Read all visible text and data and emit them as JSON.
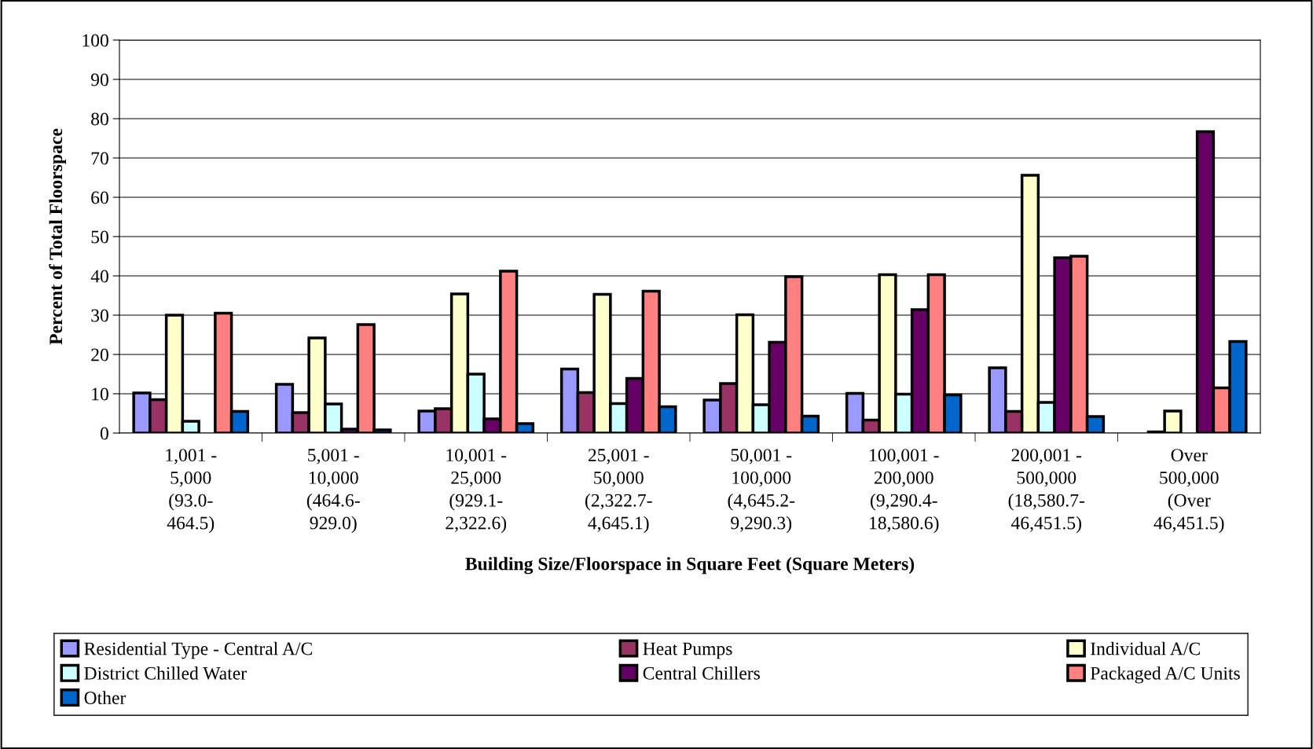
{
  "chart_data": {
    "type": "bar",
    "xlabel": "Building Size/Floorspace in Square Feet (Square Meters)",
    "ylabel": "Percent of Total Floorspace",
    "categories": [
      "1,001 -\n5,000\n(93.0-\n464.5)",
      "5,001 -\n10,000\n(464.6-\n929.0)",
      "10,001 -\n25,000\n(929.1-\n2,322.6)",
      "25,001 -\n50,000\n(2,322.7-\n4,645.1)",
      "50,001 -\n100,000\n(4,645.2-\n9,290.3)",
      "100,001 -\n200,000\n(9,290.4-\n18,580.6)",
      "200,001 -\n500,000\n(18,580.7-\n46,451.5)",
      "Over\n500,000\n(Over\n46,451.5)"
    ],
    "series": [
      {
        "name": "Residential Type - Central A/C",
        "color": "#9999ff",
        "values": [
          10.2,
          12.4,
          5.6,
          16.3,
          8.4,
          10.1,
          16.6,
          null
        ]
      },
      {
        "name": "Heat Pumps",
        "color": "#993366",
        "values": [
          8.5,
          5.2,
          6.2,
          10.3,
          12.6,
          3.3,
          5.5,
          0.3
        ]
      },
      {
        "name": "Individual A/C",
        "color": "#ffffcc",
        "values": [
          30.0,
          24.2,
          35.4,
          35.3,
          30.1,
          40.3,
          65.6,
          5.6
        ]
      },
      {
        "name": "District Chilled Water",
        "color": "#ccffff",
        "values": [
          3.0,
          7.4,
          15.0,
          7.5,
          7.2,
          9.9,
          7.8,
          null
        ]
      },
      {
        "name": "Central Chillers",
        "color": "#660066",
        "values": [
          null,
          1.0,
          3.6,
          13.9,
          23.1,
          31.4,
          44.6,
          76.7
        ]
      },
      {
        "name": "Packaged A/C Units",
        "color": "#ff8080",
        "values": [
          30.5,
          27.6,
          41.2,
          36.1,
          39.8,
          40.3,
          45.0,
          11.5
        ]
      },
      {
        "name": "Other",
        "color": "#0066cc",
        "values": [
          5.5,
          0.8,
          2.4,
          6.7,
          4.3,
          9.7,
          4.2,
          23.3
        ]
      }
    ],
    "ylim": [
      0,
      100
    ],
    "yticks": [
      0,
      10,
      20,
      30,
      40,
      50,
      60,
      70,
      80,
      90,
      100
    ],
    "grid": "y",
    "legend": "bottom"
  }
}
